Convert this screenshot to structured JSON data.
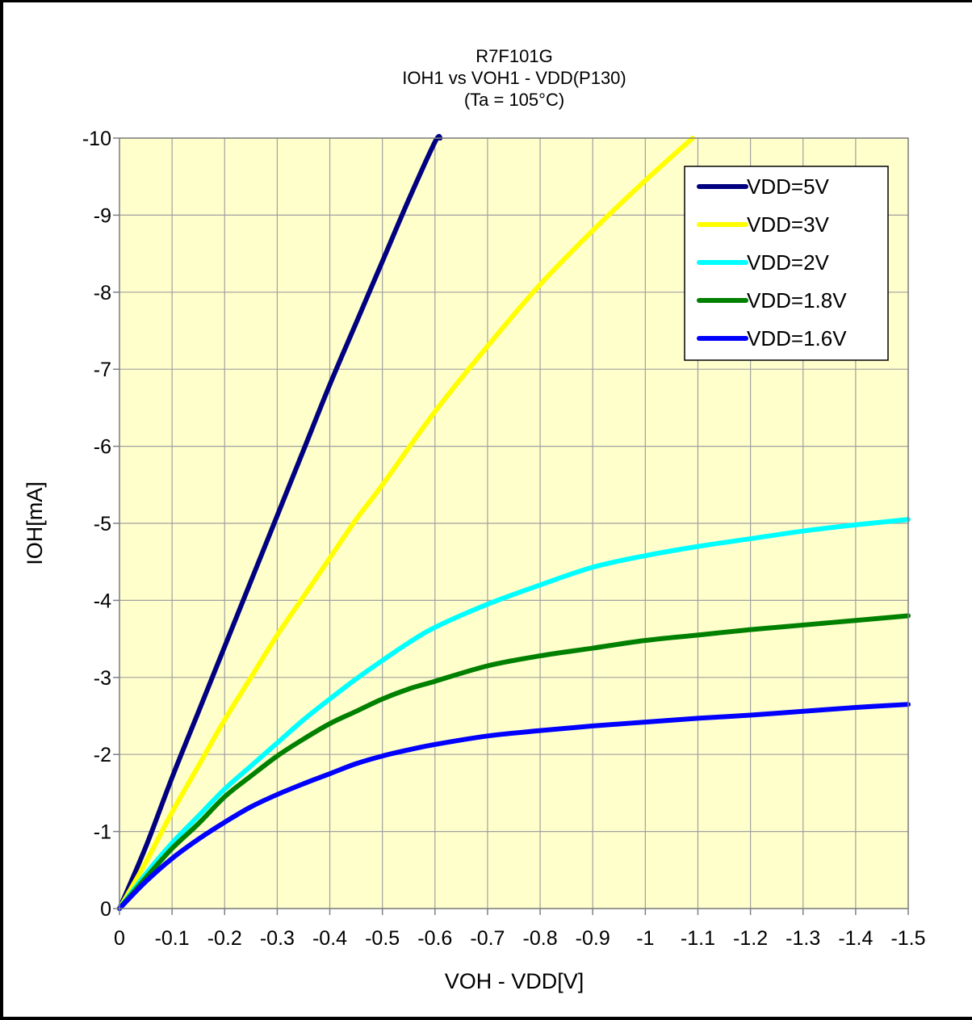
{
  "chart_data": {
    "type": "line",
    "title_lines": [
      "R7F101G",
      "IOH1 vs VOH1  - VDD(P130)",
      "(Ta =  105°C)"
    ],
    "xlabel": "VOH - VDD[V]",
    "ylabel": "IOH[mA]",
    "xlim": [
      0,
      -1.5
    ],
    "ylim": [
      0,
      -10
    ],
    "x_ticks": [
      0,
      -0.1,
      -0.2,
      -0.3,
      -0.4,
      -0.5,
      -0.6,
      -0.7,
      -0.8,
      -0.9,
      -1,
      -1.1,
      -1.2,
      -1.3,
      -1.4,
      -1.5
    ],
    "x_tick_labels": [
      "0",
      "-0.1",
      "-0.2",
      "-0.3",
      "-0.4",
      "-0.5",
      "-0.6",
      "-0.7",
      "-0.8",
      "-0.9",
      "-1",
      "-1.1",
      "-1.2",
      "-1.3",
      "-1.4",
      "-1.5"
    ],
    "y_ticks": [
      0,
      -1,
      -2,
      -3,
      -4,
      -5,
      -6,
      -7,
      -8,
      -9,
      -10
    ],
    "y_tick_labels": [
      "0",
      "-1",
      "-2",
      "-3",
      "-4",
      "-5",
      "-6",
      "-7",
      "-8",
      "-9",
      "-10"
    ],
    "grid": true,
    "plot_background": "#FFFFCC",
    "legend_position": "top-right",
    "series": [
      {
        "name": "VDD=5V",
        "color": "#000080",
        "x": [
          0,
          -0.05,
          -0.1,
          -0.15,
          -0.2,
          -0.25,
          -0.3,
          -0.35,
          -0.4,
          -0.45,
          -0.5,
          -0.55,
          -0.6,
          -0.61
        ],
        "y": [
          0,
          -0.8,
          -1.7,
          -2.55,
          -3.4,
          -4.25,
          -5.1,
          -5.95,
          -6.8,
          -7.6,
          -8.4,
          -9.2,
          -9.95,
          -10
        ]
      },
      {
        "name": "VDD=3V",
        "color": "#FFFF00",
        "x": [
          0,
          -0.05,
          -0.1,
          -0.15,
          -0.2,
          -0.25,
          -0.3,
          -0.35,
          -0.4,
          -0.45,
          -0.5,
          -0.6,
          -0.7,
          -0.8,
          -0.9,
          -1.0,
          -1.09
        ],
        "y": [
          0,
          -0.6,
          -1.25,
          -1.85,
          -2.45,
          -3.0,
          -3.55,
          -4.05,
          -4.55,
          -5.05,
          -5.5,
          -6.45,
          -7.3,
          -8.1,
          -8.8,
          -9.45,
          -10
        ]
      },
      {
        "name": "VDD=2V",
        "color": "#00FFFF",
        "x": [
          0,
          -0.05,
          -0.1,
          -0.15,
          -0.2,
          -0.25,
          -0.3,
          -0.35,
          -0.4,
          -0.45,
          -0.5,
          -0.55,
          -0.6,
          -0.7,
          -0.8,
          -0.9,
          -1.0,
          -1.1,
          -1.2,
          -1.3,
          -1.4,
          -1.5
        ],
        "y": [
          0,
          -0.45,
          -0.85,
          -1.2,
          -1.55,
          -1.85,
          -2.15,
          -2.45,
          -2.72,
          -2.98,
          -3.22,
          -3.45,
          -3.65,
          -3.95,
          -4.2,
          -4.43,
          -4.58,
          -4.7,
          -4.8,
          -4.9,
          -4.98,
          -5.05
        ]
      },
      {
        "name": "VDD=1.8V",
        "color": "#008000",
        "x": [
          0,
          -0.05,
          -0.1,
          -0.15,
          -0.2,
          -0.25,
          -0.3,
          -0.35,
          -0.4,
          -0.45,
          -0.5,
          -0.55,
          -0.6,
          -0.7,
          -0.8,
          -0.9,
          -1.0,
          -1.1,
          -1.2,
          -1.3,
          -1.4,
          -1.5
        ],
        "y": [
          0,
          -0.4,
          -0.78,
          -1.1,
          -1.45,
          -1.72,
          -1.98,
          -2.2,
          -2.4,
          -2.56,
          -2.72,
          -2.85,
          -2.95,
          -3.15,
          -3.28,
          -3.38,
          -3.48,
          -3.55,
          -3.62,
          -3.68,
          -3.74,
          -3.8
        ]
      },
      {
        "name": "VDD=1.6V",
        "color": "#0000FF",
        "x": [
          0,
          -0.05,
          -0.1,
          -0.15,
          -0.2,
          -0.25,
          -0.3,
          -0.35,
          -0.4,
          -0.45,
          -0.5,
          -0.55,
          -0.6,
          -0.7,
          -0.8,
          -0.9,
          -1.0,
          -1.1,
          -1.2,
          -1.3,
          -1.4,
          -1.5
        ],
        "y": [
          0,
          -0.35,
          -0.65,
          -0.9,
          -1.12,
          -1.32,
          -1.48,
          -1.62,
          -1.75,
          -1.88,
          -1.98,
          -2.06,
          -2.13,
          -2.24,
          -2.31,
          -2.37,
          -2.42,
          -2.47,
          -2.51,
          -2.56,
          -2.61,
          -2.65
        ]
      }
    ]
  }
}
